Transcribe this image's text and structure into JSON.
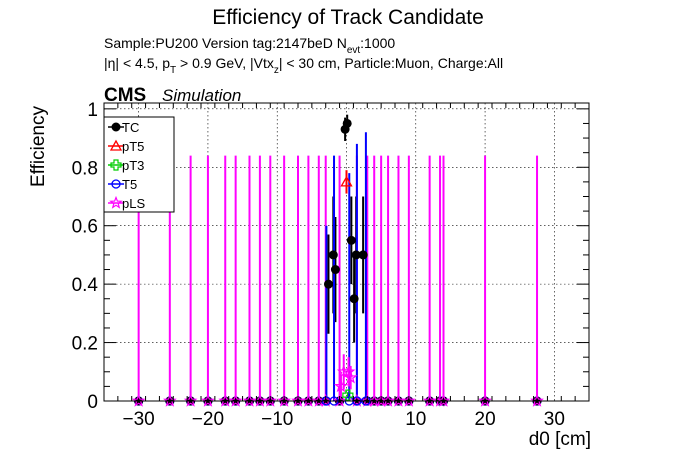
{
  "chart_data": {
    "type": "scatter",
    "title": "Efficiency of Track Candidate",
    "subtitle_sample": "Sample:PU200   Version tag:2147beD  N",
    "subtitle_nevt_sub": "evt",
    "subtitle_nevt_val": ":1000",
    "cuts": {
      "p1": "|η| < 4.5, p",
      "p1_sub": "T",
      "p2": " > 0.9 GeV, |Vtx",
      "p2_sub": "z",
      "p3": "| < 30 cm, Particle:Muon, Charge:All"
    },
    "cms_label": "CMS",
    "simulation_label": "Simulation",
    "xlabel": "d0 [cm]",
    "ylabel": "Efficiency",
    "xlim": [
      -35,
      35
    ],
    "ylim": [
      0,
      1.02
    ],
    "x_ticks": [
      -30,
      -20,
      -10,
      0,
      10,
      20,
      30
    ],
    "x_tick_labels": [
      "−30",
      "−20",
      "−10",
      "0",
      "10",
      "20",
      "30"
    ],
    "y_ticks": [
      0,
      0.2,
      0.4,
      0.6,
      0.8,
      1
    ],
    "y_tick_labels": [
      "0",
      "0.2",
      "0.4",
      "0.6",
      "0.8",
      "1"
    ],
    "grid": true,
    "legend_position": "top-left",
    "series": [
      {
        "name": "TC",
        "color": "#000000",
        "marker": "filled-circle",
        "points": [
          {
            "x": -2.6,
            "y": 0.4,
            "err": 0.17
          },
          {
            "x": -1.9,
            "y": 0.5,
            "err": 0.2
          },
          {
            "x": -1.6,
            "y": 0.45,
            "err": 0.18
          },
          {
            "x": -0.2,
            "y": 0.93,
            "err": 0.04
          },
          {
            "x": 0.1,
            "y": 0.95,
            "err": 0.03
          },
          {
            "x": 0.7,
            "y": 0.55,
            "err": 0.15
          },
          {
            "x": 1.1,
            "y": 0.35,
            "err": 0.15
          },
          {
            "x": 1.4,
            "y": 0.5,
            "err": 0.2
          },
          {
            "x": 2.4,
            "y": 0.5,
            "err": 0.2
          }
        ]
      },
      {
        "name": "pT5",
        "color": "#ff0000",
        "marker": "open-triangle",
        "points": [
          {
            "x": 0.0,
            "y": 0.75,
            "err": 0.04
          }
        ]
      },
      {
        "name": "pT3",
        "color": "#00cc00",
        "marker": "open-cross",
        "points": [
          {
            "x": 0.2,
            "y": 0.02,
            "err": 0.01
          }
        ]
      },
      {
        "name": "T5",
        "color": "#0000ff",
        "marker": "open-circle",
        "points": [
          {
            "x": -2.9,
            "y": 0.0,
            "err": 0.6
          },
          {
            "x": -1.8,
            "y": 0.0,
            "err": 0.84
          },
          {
            "x": 0.4,
            "y": 0.0,
            "err": 0.78
          },
          {
            "x": 1.5,
            "y": 0.0,
            "err": 0.88
          },
          {
            "x": 2.8,
            "y": 0.0,
            "err": 0.92
          }
        ]
      },
      {
        "name": "pLS",
        "color": "#ff00ff",
        "marker": "open-star",
        "zero_error_points": [
          -30,
          -25.5,
          -22.5,
          -20,
          -17.5,
          -16,
          -14,
          -12.5,
          -11,
          -9,
          -7,
          -5.5,
          -4,
          -3,
          -1,
          1.5,
          3,
          4,
          5,
          6,
          7.5,
          9,
          12,
          13.5,
          14,
          20,
          27.5
        ],
        "nonzero_points": [
          {
            "x": -0.8,
            "y": 0.05,
            "err": 0.04
          },
          {
            "x": -0.4,
            "y": 0.1,
            "err": 0.06
          },
          {
            "x": 0.3,
            "y": 0.1,
            "err": 0.05
          },
          {
            "x": 0.6,
            "y": 0.08,
            "err": 0.04
          }
        ]
      }
    ]
  }
}
